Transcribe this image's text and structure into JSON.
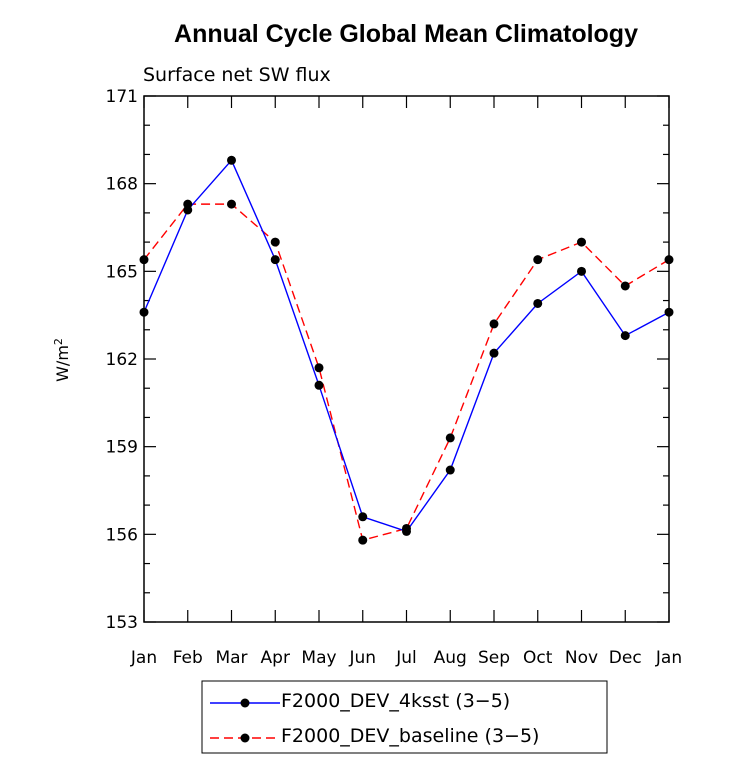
{
  "chart_data": {
    "type": "line",
    "title": "Annual Cycle Global Mean Climatology",
    "subtitle": "Surface net SW flux",
    "xlabel": "",
    "ylabel_base": "W/m",
    "ylabel_sup": "2",
    "categories": [
      "Jan",
      "Feb",
      "Mar",
      "Apr",
      "May",
      "Jun",
      "Jul",
      "Aug",
      "Sep",
      "Oct",
      "Nov",
      "Dec",
      "Jan"
    ],
    "ylim": [
      153,
      171
    ],
    "yticks": [
      153,
      156,
      159,
      162,
      165,
      168,
      171
    ],
    "grid": false,
    "legend_position": "bottom",
    "series": [
      {
        "name": "F2000_DEV_4ksst (3−5)",
        "color": "#0000ff",
        "dash": "solid",
        "values": [
          163.6,
          167.1,
          168.8,
          165.4,
          161.1,
          156.6,
          156.1,
          158.2,
          162.2,
          163.9,
          165.0,
          162.8,
          163.6
        ]
      },
      {
        "name": "F2000_DEV_baseline (3−5)",
        "color": "#ff0000",
        "dash": "dashed",
        "values": [
          165.4,
          167.3,
          167.3,
          166.0,
          161.7,
          155.8,
          156.2,
          159.3,
          163.2,
          165.4,
          166.0,
          164.5,
          165.4
        ]
      }
    ]
  }
}
